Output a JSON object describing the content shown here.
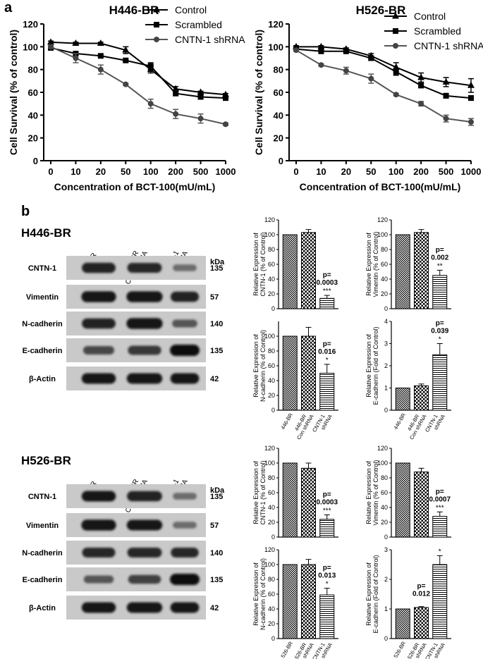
{
  "panel_labels": {
    "a": "a",
    "b": "b"
  },
  "chart_data": [
    {
      "id": "curve_h446",
      "type": "line",
      "title": "H446-BR",
      "xlabel": "Concentration of BCT-100(mU/mL)",
      "ylabel": "Cell Survival (% of control)",
      "categories": [
        "0",
        "10",
        "20",
        "50",
        "100",
        "200",
        "500",
        "1000"
      ],
      "ylim": [
        0,
        120
      ],
      "yticks": [
        0,
        20,
        40,
        60,
        80,
        100,
        120
      ],
      "grid": false,
      "legend_position": "top-right",
      "series": [
        {
          "name": "Control",
          "marker": "triangle",
          "values": [
            104,
            103,
            103,
            97,
            80,
            63,
            60,
            58
          ],
          "errors": [
            1,
            1,
            1,
            3,
            3,
            2,
            1,
            1
          ]
        },
        {
          "name": "Scrambled",
          "marker": "square",
          "values": [
            99,
            94,
            92,
            88,
            83,
            59,
            56,
            55
          ],
          "errors": [
            1,
            1,
            1,
            1,
            3,
            2,
            2,
            2
          ]
        },
        {
          "name": "CNTN-1 shRNA",
          "marker": "circle",
          "values": [
            100,
            90,
            80,
            67,
            50,
            41,
            37,
            32
          ],
          "errors": [
            1,
            4,
            4,
            1,
            4,
            4,
            4,
            1
          ]
        }
      ]
    },
    {
      "id": "curve_h526",
      "type": "line",
      "title": "H526-BR",
      "xlabel": "Concentration of BCT-100(mU/mL)",
      "ylabel": "Cell Survival (% of control)",
      "categories": [
        "0",
        "10",
        "20",
        "50",
        "100",
        "200",
        "500",
        "1000"
      ],
      "ylim": [
        0,
        120
      ],
      "yticks": [
        0,
        20,
        40,
        60,
        80,
        100,
        120
      ],
      "grid": false,
      "legend_position": "top-right",
      "series": [
        {
          "name": "Control",
          "marker": "triangle",
          "values": [
            100,
            100,
            98,
            92,
            82,
            73,
            69,
            66
          ],
          "errors": [
            1,
            1,
            1,
            2,
            4,
            4,
            4,
            6
          ]
        },
        {
          "name": "Scrambled",
          "marker": "square",
          "values": [
            98,
            96,
            96,
            90,
            78,
            66,
            57,
            55
          ],
          "errors": [
            1,
            1,
            1,
            2,
            3,
            2,
            2,
            2
          ]
        },
        {
          "name": "CNTN-1 shRNA",
          "marker": "circle",
          "values": [
            97,
            84,
            79,
            72,
            58,
            50,
            37,
            34
          ],
          "errors": [
            1,
            1,
            3,
            4,
            1,
            2,
            3,
            3
          ]
        }
      ]
    },
    {
      "id": "bar_446_cntn",
      "type": "bar",
      "categories": [
        "446-BR",
        "446-BR Con shRNA",
        "CNTN-1 shRNA"
      ],
      "ylabel": "Relative Expression of CNTN-1 (% of Control)",
      "ylim": [
        0,
        120
      ],
      "yticks": [
        0,
        20,
        40,
        60,
        80,
        100,
        120
      ],
      "values": [
        100,
        103,
        14
      ],
      "errors": [
        0,
        4,
        4
      ],
      "annotation": {
        "bar": 2,
        "p": "p=",
        "pval": "0.0003",
        "stars": "***"
      }
    },
    {
      "id": "bar_446_vim",
      "type": "bar",
      "categories": [
        "446-BR",
        "446-BR Con shRNA",
        "CNTN-1 shRNA"
      ],
      "ylabel": "Relative Expression of Vimentin (% of Control)",
      "ylim": [
        0,
        120
      ],
      "yticks": [
        0,
        20,
        40,
        60,
        80,
        100,
        120
      ],
      "values": [
        100,
        103,
        45
      ],
      "errors": [
        0,
        4,
        7
      ],
      "annotation": {
        "bar": 2,
        "p": "p=",
        "pval": "0.002",
        "stars": "**"
      }
    },
    {
      "id": "bar_446_ncad",
      "type": "bar",
      "categories": [
        "446-BR",
        "446-BR Con shRNA",
        "CNTN-1 shRNA"
      ],
      "ylabel": "Relative Expression of N-cadherin (% of Control)",
      "ylim": [
        0,
        120
      ],
      "yticks": [
        0,
        20,
        40,
        60,
        80,
        100
      ],
      "values": [
        100,
        100,
        50
      ],
      "errors": [
        0,
        12,
        12
      ],
      "annotation": {
        "bar": 2,
        "p": "p=",
        "pval": "0.016",
        "stars": "*"
      }
    },
    {
      "id": "bar_446_ecad",
      "type": "bar",
      "categories": [
        "446-BR",
        "446-BR Con shRNA",
        "CNTN-1 shRNA"
      ],
      "ylabel": "Relative Expression of E-cadherin (Fold of Control)",
      "ylim": [
        0,
        4
      ],
      "yticks": [
        0,
        1,
        2,
        3,
        4
      ],
      "values": [
        1.0,
        1.1,
        2.5
      ],
      "errors": [
        0,
        0.08,
        0.5
      ],
      "annotation": {
        "bar": 2,
        "p": "p=",
        "pval": "0.039",
        "stars": "*"
      }
    },
    {
      "id": "bar_526_cntn",
      "type": "bar",
      "categories": [
        "526-BR",
        "526-BR Con shRNA",
        "CNTN-1 shRNA"
      ],
      "ylabel": "Relative Expression of CNTN-1 (% of Control)",
      "ylim": [
        0,
        120
      ],
      "yticks": [
        0,
        20,
        40,
        60,
        80,
        100,
        120
      ],
      "values": [
        100,
        93,
        24
      ],
      "errors": [
        0,
        7,
        6
      ],
      "annotation": {
        "bar": 2,
        "p": "p=",
        "pval": "0.0003",
        "stars": "***"
      }
    },
    {
      "id": "bar_526_vim",
      "type": "bar",
      "categories": [
        "526-BR",
        "526-BR Con shRNA",
        "CNTN-1 shRNA"
      ],
      "ylabel": "Relative Expression of Vimentin (% of Control)",
      "ylim": [
        0,
        120
      ],
      "yticks": [
        0,
        20,
        40,
        60,
        80,
        100,
        120
      ],
      "values": [
        100,
        88,
        28
      ],
      "errors": [
        0,
        5,
        6
      ],
      "annotation": {
        "bar": 2,
        "p": "p=",
        "pval": "0.0007",
        "stars": "***"
      }
    },
    {
      "id": "bar_526_ncad",
      "type": "bar",
      "categories": [
        "526-BR",
        "526-BR Con shRNA",
        "CNTN-1 shRNA"
      ],
      "ylabel": "Relative Expression of N-cadherin (% of Control)",
      "ylim": [
        0,
        120
      ],
      "yticks": [
        0,
        20,
        40,
        60,
        80,
        100,
        120
      ],
      "values": [
        100,
        100,
        59
      ],
      "errors": [
        0,
        7,
        9
      ],
      "annotation": {
        "bar": 2,
        "p": "p=",
        "pval": "0.013",
        "stars": "*"
      }
    },
    {
      "id": "bar_526_ecad",
      "type": "bar",
      "categories": [
        "526-BR",
        "526-BR Con shRNA",
        "CNTN-1 shRNA"
      ],
      "ylabel": "Relative Expression of E-cadherin (Fold of Control)",
      "ylim": [
        0,
        3
      ],
      "yticks": [
        0,
        1,
        2,
        3
      ],
      "values": [
        1.0,
        1.05,
        2.5
      ],
      "errors": [
        0,
        0.03,
        0.3
      ],
      "annotation": {
        "bar": 1,
        "p": "p=",
        "pval": "0.012",
        "stars": "*",
        "star_bar": 2
      }
    }
  ],
  "blots": [
    {
      "id": "blot_h446",
      "title": "H446-BR",
      "lanes": [
        "H446-BR",
        "H446-BR Con shRNA",
        "CNTN-1 shRNA"
      ],
      "kda_label": "kDa",
      "rows": [
        {
          "protein": "CNTN-1",
          "kda": "135",
          "intensity": [
            0.85,
            0.8,
            0.35
          ]
        },
        {
          "protein": "Vimentin",
          "kda": "57",
          "intensity": [
            0.95,
            0.95,
            0.85
          ]
        },
        {
          "protein": "N-cadherin",
          "kda": "140",
          "intensity": [
            0.85,
            0.95,
            0.5
          ]
        },
        {
          "protein": "E-cadherin",
          "kda": "135",
          "intensity": [
            0.6,
            0.7,
            1.0
          ]
        },
        {
          "protein": "β-Actin",
          "kda": "42",
          "intensity": [
            0.9,
            0.9,
            0.9
          ]
        }
      ]
    },
    {
      "id": "blot_h526",
      "title": "H526-BR",
      "lanes": [
        "H526-BR",
        "H526-BR Con shRNA",
        "CNTN-1 shRNA"
      ],
      "kda_label": "kDa",
      "rows": [
        {
          "protein": "CNTN-1",
          "kda": "135",
          "intensity": [
            0.9,
            0.85,
            0.35
          ]
        },
        {
          "protein": "Vimentin",
          "kda": "57",
          "intensity": [
            0.95,
            0.9,
            0.35
          ]
        },
        {
          "protein": "N-cadherin",
          "kda": "140",
          "intensity": [
            0.8,
            0.8,
            0.8
          ]
        },
        {
          "protein": "E-cadherin",
          "kda": "135",
          "intensity": [
            0.5,
            0.65,
            1.0
          ]
        },
        {
          "protein": "β-Actin",
          "kda": "42",
          "intensity": [
            0.9,
            0.9,
            0.9
          ]
        }
      ]
    }
  ]
}
